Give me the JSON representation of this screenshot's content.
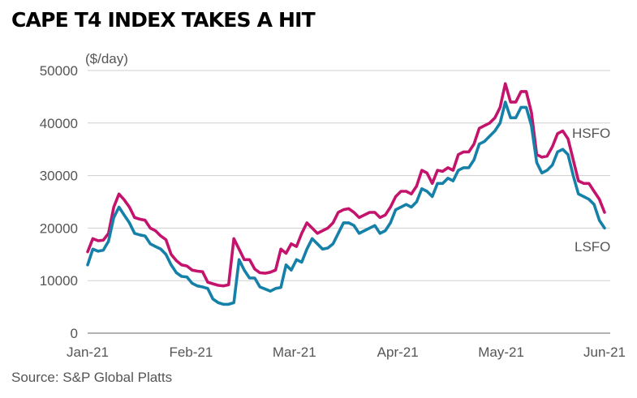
{
  "chart_data": {
    "type": "line",
    "title": "CAPE T4 INDEX TAKES A HIT",
    "ylabel": "($/day)",
    "source": "Source: S&P Global Platts",
    "ylim": [
      0,
      50000
    ],
    "yticks": [
      0,
      10000,
      20000,
      30000,
      40000,
      50000
    ],
    "xticks": [
      "Jan-21",
      "Feb-21",
      "Mar-21",
      "Apr-21",
      "May-21",
      "Jun-21"
    ],
    "grid": true,
    "x_count": 100,
    "series": [
      {
        "name": "HSFO",
        "color": "#c4136c",
        "values": [
          15500,
          18000,
          17600,
          17700,
          19000,
          24000,
          26500,
          25400,
          24000,
          22000,
          21700,
          21500,
          20000,
          19500,
          18500,
          17800,
          15000,
          13800,
          13000,
          12800,
          12000,
          11800,
          11700,
          9700,
          9400,
          9100,
          9000,
          9200,
          18000,
          16000,
          14000,
          14000,
          12200,
          11500,
          11400,
          11600,
          12000,
          16000,
          15200,
          17000,
          16500,
          19000,
          21000,
          20000,
          19000,
          19500,
          20000,
          21000,
          23000,
          23500,
          23700,
          23000,
          22000,
          22500,
          23000,
          23000,
          22000,
          22500,
          24000,
          26000,
          27000,
          27000,
          26500,
          28000,
          31000,
          30500,
          28500,
          31000,
          30800,
          31500,
          31000,
          34000,
          34500,
          34500,
          36000,
          39000,
          39500,
          40000,
          41000,
          43000,
          47500,
          44000,
          44000,
          46000,
          46000,
          42000,
          34000,
          33500,
          33700,
          35500,
          38000,
          38500,
          37000,
          33000,
          29000,
          28500,
          28500,
          27000,
          25500,
          23000
        ]
      },
      {
        "name": "LSFO",
        "color": "#1581a8",
        "values": [
          13000,
          16000,
          15600,
          15800,
          17500,
          22000,
          24000,
          22500,
          21000,
          19000,
          18700,
          18500,
          17000,
          16500,
          16000,
          15000,
          13000,
          11500,
          10800,
          10700,
          9500,
          9000,
          8800,
          8500,
          6500,
          5800,
          5500,
          5500,
          5800,
          14000,
          12000,
          10500,
          10500,
          8800,
          8400,
          8000,
          8500,
          8700,
          13000,
          12000,
          14000,
          13500,
          16000,
          18000,
          17000,
          16000,
          16200,
          17000,
          19000,
          21000,
          21000,
          20500,
          19000,
          19500,
          20000,
          20500,
          19000,
          19500,
          21000,
          23500,
          24000,
          24500,
          24000,
          25000,
          27500,
          27000,
          26000,
          28500,
          28500,
          29500,
          29000,
          31000,
          31500,
          31500,
          33000,
          36000,
          36500,
          37500,
          38500,
          40000,
          44000,
          41000,
          41000,
          43000,
          43000,
          39500,
          32500,
          30500,
          31000,
          32000,
          34500,
          35000,
          34000,
          30000,
          26500,
          26000,
          25500,
          24500,
          21500,
          20000
        ]
      }
    ]
  }
}
